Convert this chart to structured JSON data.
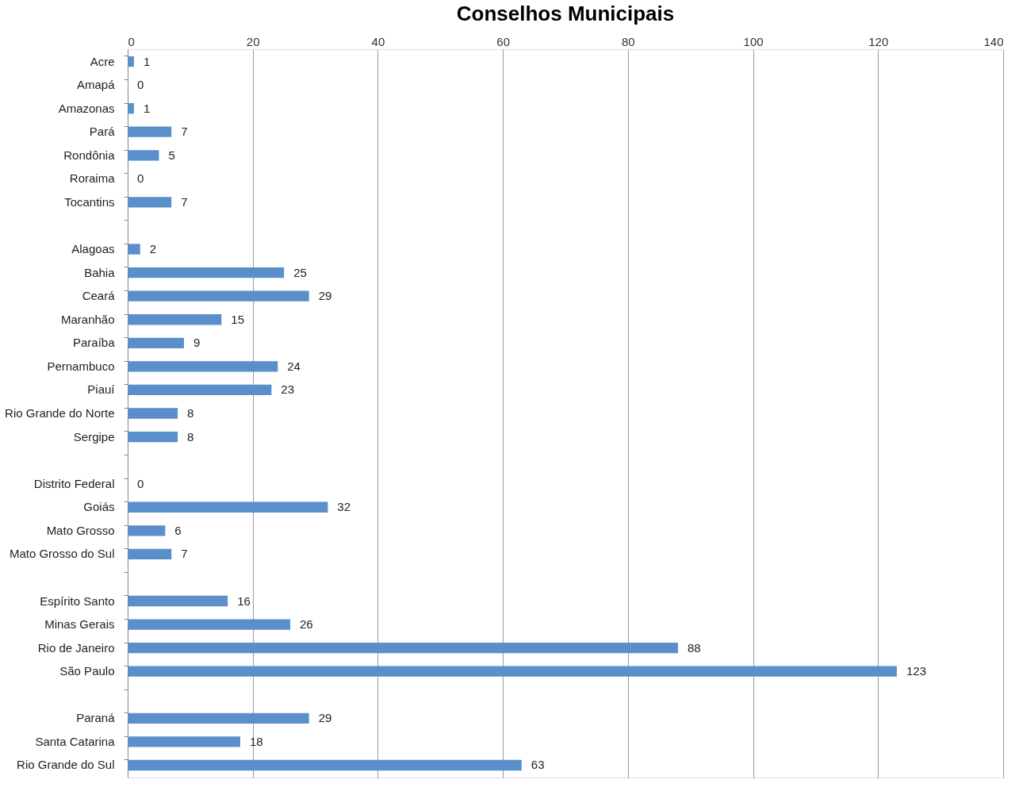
{
  "chart_data": {
    "type": "bar",
    "orientation": "horizontal",
    "title": "Conselhos Municipais",
    "categories": [
      "Acre",
      "Amapá",
      "Amazonas",
      "Pará",
      "Rondônia",
      "Roraima",
      "Tocantins",
      null,
      "Alagoas",
      "Bahia",
      "Ceará",
      "Maranhão",
      "Paraíba",
      "Pernambuco",
      "Piauí",
      "Rio Grande do Norte",
      "Sergipe",
      null,
      "Distrito Federal",
      "Goiás",
      "Mato Grosso",
      "Mato Grosso do Sul",
      null,
      "Espírito Santo",
      "Minas Gerais",
      "Rio de Janeiro",
      "São Paulo",
      null,
      "Paraná",
      "Santa Catarina",
      "Rio Grande do Sul"
    ],
    "values": [
      1,
      0,
      1,
      7,
      5,
      0,
      7,
      null,
      2,
      25,
      29,
      15,
      9,
      24,
      23,
      8,
      8,
      null,
      0,
      32,
      6,
      7,
      null,
      16,
      26,
      88,
      123,
      null,
      29,
      18,
      63
    ],
    "color": "#5a8fcb",
    "xlim": [
      0,
      140
    ],
    "xticks": [
      0,
      20,
      40,
      60,
      80,
      100,
      120,
      140
    ],
    "grid": "x",
    "data_labels": true
  }
}
